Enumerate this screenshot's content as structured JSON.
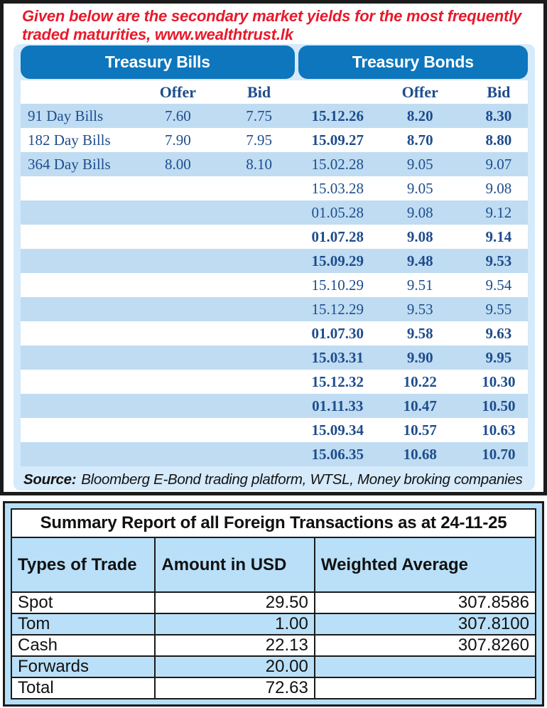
{
  "header": {
    "line1": "Given below are the secondary market yields for the most frequently",
    "line2": "traded maturities, www.wealthtrust.lk"
  },
  "treasury": {
    "bills_title": "Treasury Bills",
    "bonds_title": "Treasury Bonds",
    "col_offer": "Offer",
    "col_bid": "Bid",
    "bills": [
      {
        "label": "91 Day Bills",
        "offer": "7.60",
        "bid": "7.75"
      },
      {
        "label": "182 Day Bills",
        "offer": "7.90",
        "bid": "7.95"
      },
      {
        "label": "364 Day Bills",
        "offer": "8.00",
        "bid": "8.10"
      }
    ],
    "bonds": [
      {
        "date": "15.12.26",
        "offer": "8.20",
        "bid": "8.30",
        "bold": true
      },
      {
        "date": "15.09.27",
        "offer": "8.70",
        "bid": "8.80",
        "bold": true
      },
      {
        "date": "15.02.28",
        "offer": "9.05",
        "bid": "9.07",
        "bold": false
      },
      {
        "date": "15.03.28",
        "offer": "9.05",
        "bid": "9.08",
        "bold": false
      },
      {
        "date": "01.05.28",
        "offer": "9.08",
        "bid": "9.12",
        "bold": false
      },
      {
        "date": "01.07.28",
        "offer": "9.08",
        "bid": "9.14",
        "bold": true
      },
      {
        "date": "15.09.29",
        "offer": "9.48",
        "bid": "9.53",
        "bold": true
      },
      {
        "date": "15.10.29",
        "offer": "9.51",
        "bid": "9.54",
        "bold": false
      },
      {
        "date": "15.12.29",
        "offer": "9.53",
        "bid": "9.55",
        "bold": false
      },
      {
        "date": "01.07.30",
        "offer": "9.58",
        "bid": "9.63",
        "bold": true
      },
      {
        "date": "15.03.31",
        "offer": "9.90",
        "bid": "9.95",
        "bold": true
      },
      {
        "date": "15.12.32",
        "offer": "10.22",
        "bid": "10.30",
        "bold": true
      },
      {
        "date": "01.11.33",
        "offer": "10.47",
        "bid": "10.50",
        "bold": true
      },
      {
        "date": "15.09.34",
        "offer": "10.57",
        "bid": "10.63",
        "bold": true
      },
      {
        "date": "15.06.35",
        "offer": "10.68",
        "bid": "10.70",
        "bold": true
      }
    ],
    "source_label": "Source:",
    "source_text": "Bloomberg E-Bond trading platform, WTSL, Money broking companies"
  },
  "summary": {
    "title": "Summary Report of all Foreign Transactions as at 24-11-25",
    "columns": [
      "Types of Trade",
      "Amount in USD",
      "Weighted Average"
    ],
    "rows": [
      {
        "type": "Spot",
        "amount": "29.50",
        "weighted_average": "307.8586"
      },
      {
        "type": "Tom",
        "amount": "1.00",
        "weighted_average": "307.8100"
      },
      {
        "type": "Cash",
        "amount": "22.13",
        "weighted_average": "307.8260"
      },
      {
        "type": "Forwards",
        "amount": "20.00",
        "weighted_average": ""
      },
      {
        "type": "Total",
        "amount": "72.63",
        "weighted_average": ""
      }
    ]
  },
  "colors": {
    "accent_red": "#e8192b",
    "pill_blue": "#0d76bd",
    "navy_text": "#1e4d8d",
    "stripe_blue": "#bfdcf2",
    "card_blue": "#d5eafa",
    "summary_blue": "#b9e0f8",
    "border_black": "#1b1b1b"
  }
}
